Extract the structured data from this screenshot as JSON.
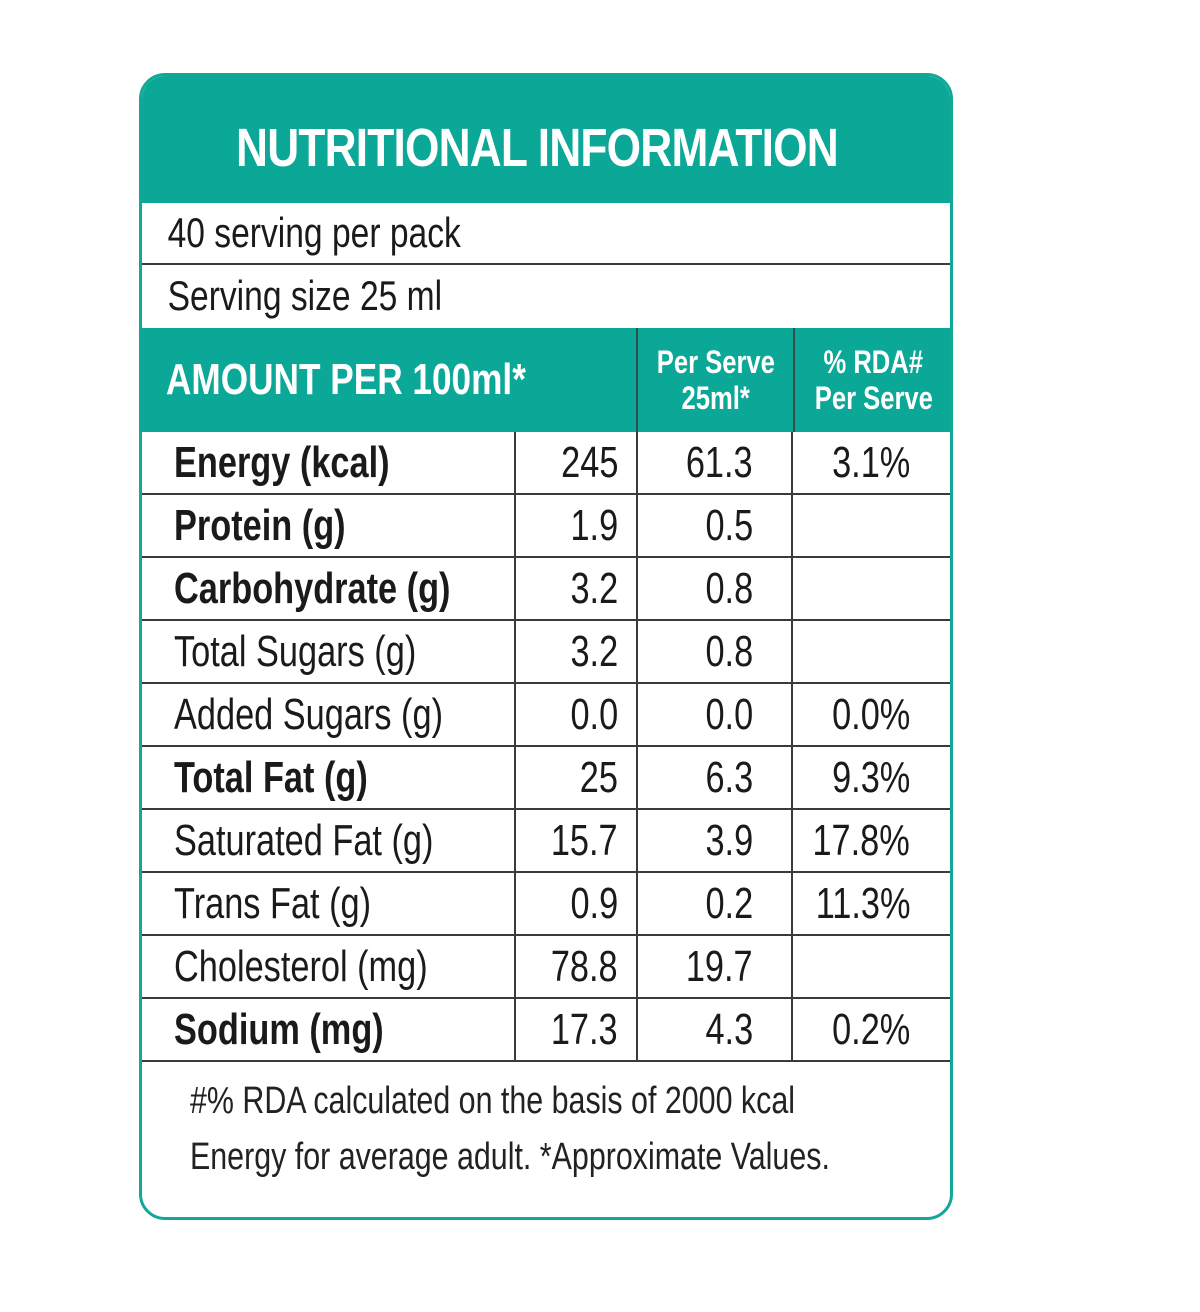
{
  "label": {
    "title": "NUTRITIONAL INFORMATION",
    "servings_per_pack": "40 serving per pack",
    "serving_size": "Serving size 25 ml",
    "columns": {
      "amount_header": "AMOUNT PER 100ml*",
      "per_serve_line1": "Per Serve",
      "per_serve_line2": "25ml*",
      "rda_line1": "% RDA#",
      "rda_line2": "Per Serve"
    },
    "rows": [
      {
        "nutrient": "Energy (kcal)",
        "per_100ml": "245",
        "per_serve": "61.3",
        "rda": "3.1%",
        "bold": true
      },
      {
        "nutrient": "Protein (g)",
        "per_100ml": "1.9",
        "per_serve": "0.5",
        "rda": "",
        "bold": true
      },
      {
        "nutrient": "Carbohydrate (g)",
        "per_100ml": "3.2",
        "per_serve": "0.8",
        "rda": "",
        "bold": true
      },
      {
        "nutrient": "Total Sugars (g)",
        "per_100ml": "3.2",
        "per_serve": "0.8",
        "rda": "",
        "bold": false
      },
      {
        "nutrient": "Added Sugars (g)",
        "per_100ml": "0.0",
        "per_serve": "0.0",
        "rda": "0.0%",
        "bold": false
      },
      {
        "nutrient": "Total Fat (g)",
        "per_100ml": "25",
        "per_serve": "6.3",
        "rda": "9.3%",
        "bold": true
      },
      {
        "nutrient": "Saturated Fat (g)",
        "per_100ml": "15.7",
        "per_serve": "3.9",
        "rda": "17.8%",
        "bold": false
      },
      {
        "nutrient": "Trans Fat (g)",
        "per_100ml": "0.9",
        "per_serve": "0.2",
        "rda": "11.3%",
        "bold": false
      },
      {
        "nutrient": "Cholesterol (mg)",
        "per_100ml": "78.8",
        "per_serve": "19.7",
        "rda": "",
        "bold": false
      },
      {
        "nutrient": "Sodium (mg)",
        "per_100ml": "17.3",
        "per_serve": "4.3",
        "rda": "0.2%",
        "bold": true
      }
    ],
    "footnote_line1": "#% RDA calculated on the basis of 2000 kcal",
    "footnote_line2": "Energy for average adult. *Approximate Values."
  },
  "colors": {
    "accent": "#0ba797",
    "border": "#12a898",
    "text": "#1a1a1a"
  }
}
